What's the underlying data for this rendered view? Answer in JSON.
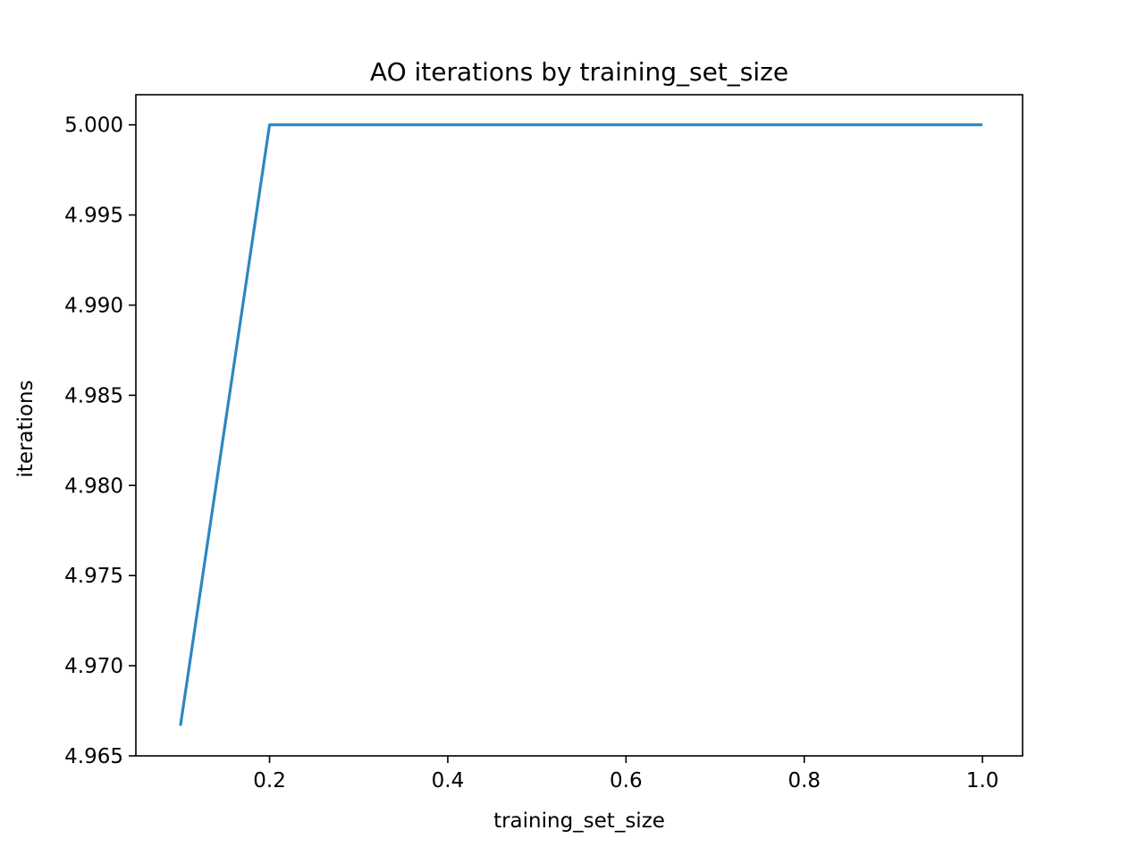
{
  "chart_data": {
    "type": "line",
    "title": "AO iterations by training_set_size",
    "xlabel": "training_set_size",
    "ylabel": "iterations",
    "xlim": [
      0.05,
      1.045
    ],
    "ylim": [
      4.965,
      5.00167
    ],
    "xticks": [
      0.2,
      0.4,
      0.6,
      0.8,
      1.0
    ],
    "xtick_labels": [
      "0.2",
      "0.4",
      "0.6",
      "0.8",
      "1.0"
    ],
    "yticks": [
      4.965,
      4.97,
      4.975,
      4.98,
      4.985,
      4.99,
      4.995,
      5.0
    ],
    "ytick_labels": [
      "4.965",
      "4.970",
      "4.975",
      "4.980",
      "4.985",
      "4.990",
      "4.995",
      "5.000"
    ],
    "grid": false,
    "series": [
      {
        "color": "#2e86c1",
        "x": [
          0.1,
          0.2,
          0.3,
          0.4,
          0.5,
          0.6,
          0.7,
          0.8,
          0.9,
          1.0
        ],
        "y": [
          4.96667,
          5.0,
          5.0,
          5.0,
          5.0,
          5.0,
          5.0,
          5.0,
          5.0,
          5.0
        ]
      }
    ]
  }
}
